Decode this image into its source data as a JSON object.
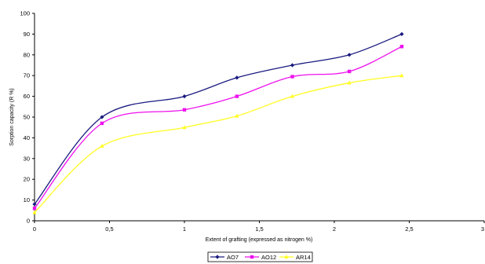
{
  "chart_data": {
    "type": "line",
    "title": "",
    "xlabel": "Extent of grafting (expressed as nitrogen %)",
    "ylabel": "Sorption capacity (R %)",
    "xlim": [
      0,
      3
    ],
    "ylim": [
      0,
      100
    ],
    "x_ticks": [
      0,
      0.5,
      1,
      1.5,
      2,
      2.5,
      3
    ],
    "x_tick_labels": [
      "0",
      "0,5",
      "1",
      "1,5",
      "2",
      "2,5",
      "3"
    ],
    "y_ticks": [
      0,
      10,
      20,
      30,
      40,
      50,
      60,
      70,
      80,
      90,
      100
    ],
    "y_tick_labels": [
      "0",
      "10",
      "20",
      "30",
      "40",
      "50",
      "60",
      "70",
      "80",
      "90",
      "100"
    ],
    "grid": false,
    "legend_position": "bottom",
    "series": [
      {
        "name": "AO7",
        "color": "#1a1a80",
        "marker": "diamond",
        "x": [
          0,
          0.45,
          1.0,
          1.35,
          1.72,
          2.1,
          2.45
        ],
        "y": [
          8,
          50,
          60,
          69,
          75,
          80,
          90
        ]
      },
      {
        "name": "AO12",
        "color": "#ee11ee",
        "marker": "square",
        "x": [
          0,
          0.45,
          1.0,
          1.35,
          1.72,
          2.1,
          2.45
        ],
        "y": [
          6,
          47,
          53.5,
          60,
          69.5,
          72,
          84
        ]
      },
      {
        "name": "AR14",
        "color": "#ffff22",
        "marker": "triangle",
        "x": [
          0,
          0.45,
          1.0,
          1.35,
          1.72,
          2.1,
          2.45
        ],
        "y": [
          4,
          36,
          45,
          50.5,
          60,
          66.5,
          70
        ]
      }
    ]
  }
}
